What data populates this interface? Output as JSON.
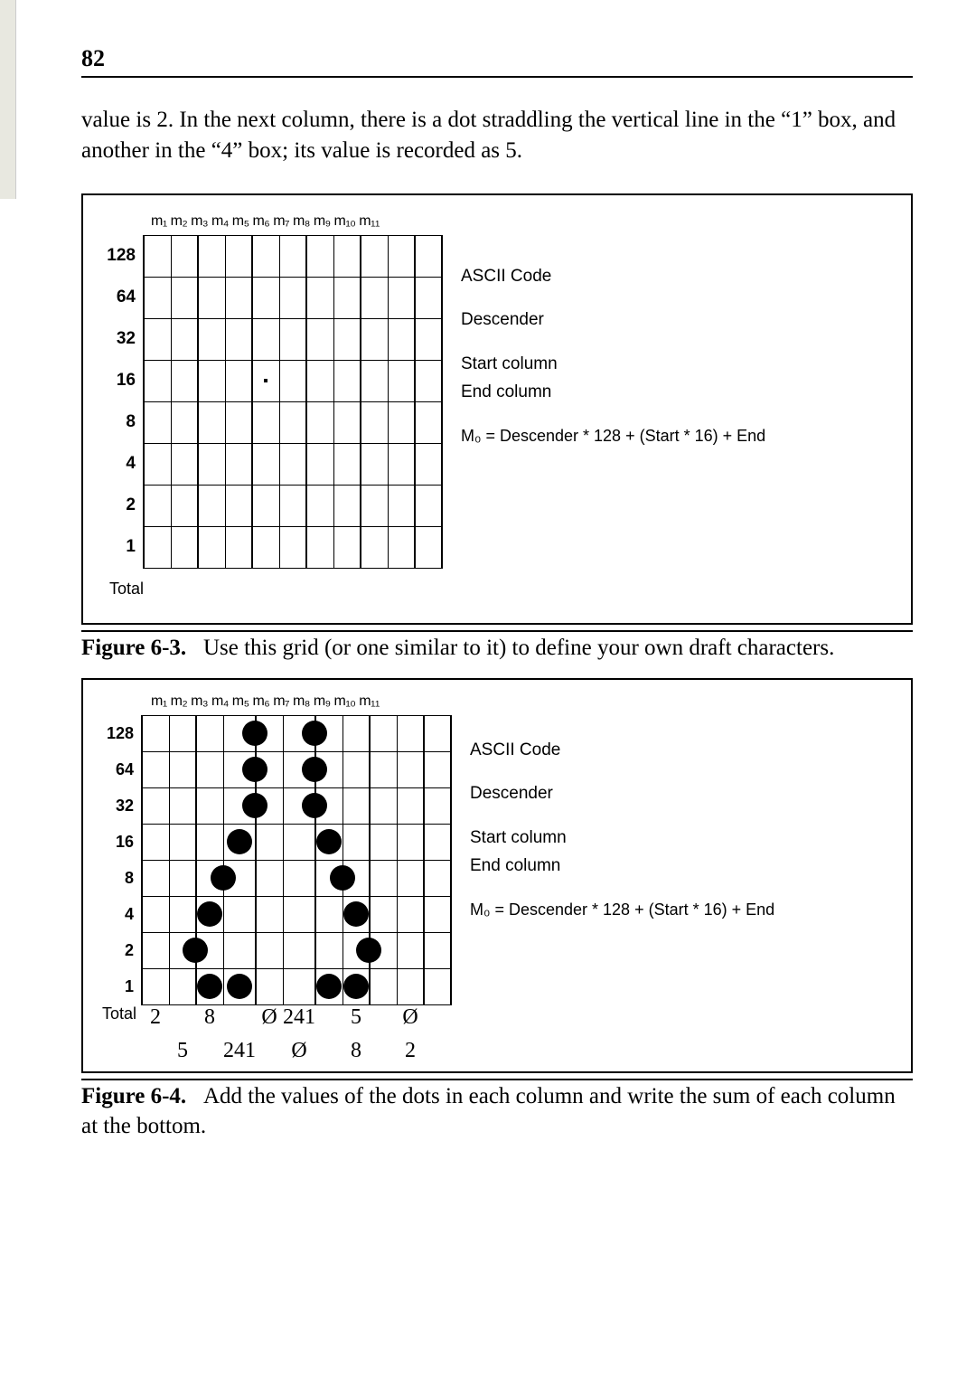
{
  "page": {
    "number": "82",
    "body_text": "value is 2. In the next column, there is a dot straddling the vertical line in the “1” box, and another in the “4” box; its value is recorded as 5."
  },
  "figure63": {
    "col_header": "m₁ m₂ m₃ m₄ m₅ m₆ m₇ m₈ m₉ m₁₀ m₁₁",
    "row_labels": [
      "128",
      "64",
      "32",
      "16",
      "8",
      "4",
      "2",
      "1"
    ],
    "total_label": "Total",
    "info": {
      "l1": "ASCII Code",
      "l2": "Descender",
      "l3": "Start column",
      "l4": "End column",
      "formula": "M₀  =  Descender  *  128  +  (Start  *  16)  +  End"
    },
    "caption_label": "Figure 6-3.",
    "caption_text": "Use this grid (or one similar to it) to define your own draft characters."
  },
  "figure64": {
    "col_header": "m₁ m₂ m₃ m₄ m₅ m₆ m₇ m₈ m₉ m₁₀ m₁₁",
    "row_labels": [
      "128",
      "64",
      "32",
      "16",
      "8",
      "4",
      "2",
      "1"
    ],
    "total_label": "Total",
    "dots": [
      {
        "row": 0,
        "col": 3.5
      },
      {
        "row": 0,
        "col": 5.5
      },
      {
        "row": 1,
        "col": 3.5
      },
      {
        "row": 1,
        "col": 5.5
      },
      {
        "row": 2,
        "col": 3.5
      },
      {
        "row": 2,
        "col": 5.5
      },
      {
        "row": 3,
        "col": 3
      },
      {
        "row": 3,
        "col": 6
      },
      {
        "row": 4,
        "col": 2.5
      },
      {
        "row": 4,
        "col": 6.5
      },
      {
        "row": 5,
        "col": 2
      },
      {
        "row": 5,
        "col": 7
      },
      {
        "row": 6,
        "col": 1.5
      },
      {
        "row": 6,
        "col": 7.5
      },
      {
        "row": 7,
        "col": 2
      },
      {
        "row": 7,
        "col": 3
      },
      {
        "row": 7,
        "col": 6
      },
      {
        "row": 7,
        "col": 7
      }
    ],
    "totals_top": [
      "2",
      "",
      "8",
      "",
      "Ø",
      "241",
      "",
      "5",
      "",
      "Ø",
      ""
    ],
    "totals_bottom": [
      "",
      "5",
      "",
      "241",
      "",
      "Ø",
      "",
      "8",
      "",
      "2",
      ""
    ],
    "info": {
      "l1": "ASCII Code",
      "l2": "Descender",
      "l3": "Start column",
      "l4": "End column",
      "formula": "M₀  =  Descender  *  128  +  (Start  *  16)  +  End"
    },
    "caption_label": "Figure 6-4.",
    "caption_text": "Add the values of the dots in each column and write the sum of each column at the bottom."
  }
}
